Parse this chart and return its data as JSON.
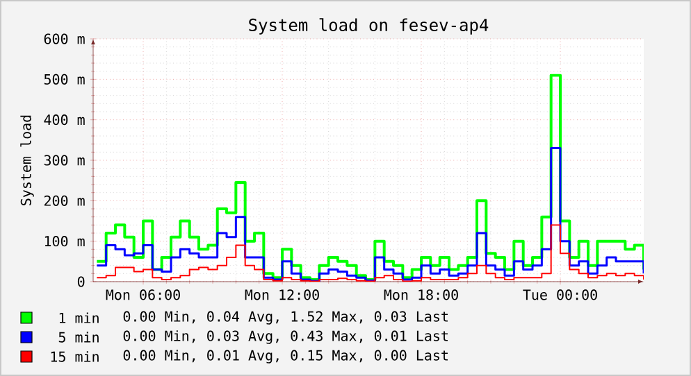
{
  "chart_data": {
    "type": "step",
    "title": "System load on fesev-ap4",
    "ylabel": "System load",
    "categories": [
      null,
      null,
      null,
      null,
      null,
      "Mon 06:00",
      null,
      null,
      null,
      null,
      null,
      null,
      null,
      null,
      null,
      null,
      null,
      null,
      null,
      null,
      "Mon 12:00",
      null,
      null,
      null,
      null,
      null,
      null,
      null,
      null,
      null,
      null,
      null,
      null,
      null,
      null,
      "Mon 18:00",
      null,
      null,
      null,
      null,
      null,
      null,
      null,
      null,
      null,
      null,
      null,
      null,
      null,
      null,
      "Tue 00:00",
      null,
      null,
      null,
      null,
      null,
      null,
      null,
      null,
      null
    ],
    "series": [
      {
        "name": "1 min",
        "color": "#00ff00",
        "values": [
          50,
          120,
          140,
          110,
          60,
          150,
          30,
          60,
          110,
          150,
          110,
          80,
          90,
          180,
          170,
          245,
          100,
          120,
          20,
          10,
          80,
          40,
          10,
          5,
          40,
          60,
          50,
          40,
          15,
          5,
          100,
          50,
          40,
          10,
          30,
          60,
          40,
          60,
          30,
          40,
          60,
          200,
          70,
          60,
          30,
          100,
          40,
          60,
          160,
          510,
          150,
          60,
          100,
          40,
          100,
          100,
          100,
          80,
          90,
          30
        ]
      },
      {
        "name": "5 min",
        "color": "#0000ff",
        "values": [
          40,
          90,
          80,
          65,
          70,
          90,
          30,
          25,
          60,
          80,
          70,
          60,
          60,
          120,
          110,
          160,
          60,
          60,
          10,
          5,
          50,
          20,
          5,
          2,
          20,
          30,
          25,
          15,
          10,
          3,
          60,
          30,
          20,
          5,
          10,
          40,
          20,
          30,
          15,
          20,
          40,
          120,
          40,
          30,
          15,
          50,
          30,
          40,
          80,
          330,
          100,
          40,
          50,
          20,
          40,
          60,
          50,
          50,
          50,
          20
        ]
      },
      {
        "name": "15 min",
        "color": "#ff0000",
        "values": [
          10,
          15,
          35,
          35,
          25,
          30,
          10,
          5,
          10,
          15,
          30,
          35,
          30,
          40,
          60,
          90,
          40,
          30,
          5,
          2,
          10,
          5,
          2,
          1,
          5,
          5,
          8,
          5,
          2,
          1,
          10,
          15,
          5,
          1,
          2,
          10,
          5,
          5,
          5,
          10,
          20,
          40,
          20,
          10,
          5,
          10,
          10,
          10,
          20,
          140,
          70,
          30,
          20,
          10,
          15,
          20,
          15,
          20,
          15,
          5
        ]
      }
    ],
    "ylim": [
      0,
      600
    ],
    "yticks": [
      0,
      {
        "value": 100,
        "label": "100 m"
      },
      {
        "value": 200,
        "label": "200 m"
      },
      {
        "value": 300,
        "label": "300 m"
      },
      {
        "value": 400,
        "label": "400 m"
      },
      {
        "value": 500,
        "label": "500 m"
      },
      {
        "value": 600,
        "label": "600 m"
      }
    ],
    "grid": true,
    "legend": "bottom",
    "annotations": [
      "0.00 Min,  0.04 Avg,  1.52 Max,  0.03 Last",
      "0.00 Min,  0.03 Avg,  0.43 Max,  0.01 Last",
      "0.00 Min,  0.01 Avg,  0.15 Max,  0.00 Last"
    ]
  }
}
